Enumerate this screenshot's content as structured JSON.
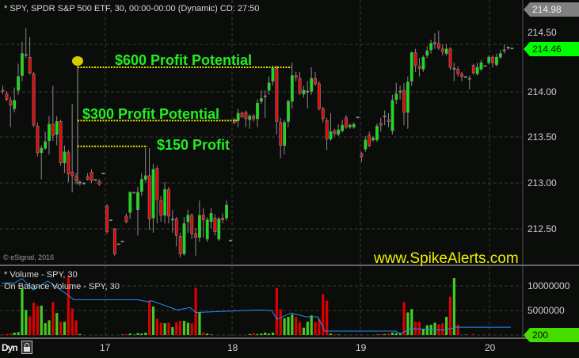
{
  "header": {
    "title": "* SPY, SPDR S&P 500 ETF, 30, 00:00-00:00 (Dynamic) CD: 27:50"
  },
  "annotations": {
    "a600": "$600 Profit Potential",
    "a300": "$300 Profit Potential",
    "a150": "$150 Profit"
  },
  "watermark": "www.SpikeAlerts.com",
  "copyright": "© eSignal, 2016",
  "volume_panel": {
    "legend1": "* Volume - SPY, 30",
    "legend2": "On Balance Volume - SPY, 30",
    "labels": [
      "10000000",
      "5000000"
    ],
    "current": "200"
  },
  "price_axis": {
    "high_tag": "214.98",
    "last_tag": "214.46",
    "labels": [
      "214.50",
      "214.00",
      "213.50",
      "213.00",
      "212.50"
    ]
  },
  "x_axis": {
    "labels": [
      "17",
      "18",
      "19",
      "20"
    ]
  },
  "footer": {
    "dyn": "Dyn"
  },
  "colors": {
    "up": "#00ee00",
    "down": "#ee0000",
    "annotation": "#22ee22",
    "dotted": "#e6e600",
    "watermark": "#f0f000",
    "obv": "#1e90ff",
    "last_tag": "#00ff00",
    "vol_up": "#44cc22",
    "vol_down": "#dd0000"
  },
  "chart_data": {
    "type": "candlestick",
    "title": "* SPY, SPDR S&P 500 ETF, 30, 00:00-00:00 (Dynamic) CD: 27:50",
    "ylim": [
      212.18,
      214.98
    ],
    "grid": true,
    "x_tick_labels": [
      "17",
      "18",
      "19",
      "20"
    ],
    "y_tick_labels": [
      "214.50",
      "214.00",
      "213.50",
      "213.00",
      "212.50"
    ],
    "ohlc": [
      [
        214.0,
        214.05,
        213.96,
        213.99
      ],
      [
        213.96,
        213.99,
        213.88,
        213.9
      ],
      [
        213.89,
        213.93,
        213.6,
        213.84
      ],
      [
        213.8,
        214.03,
        213.76,
        213.89
      ],
      [
        214.0,
        214.29,
        213.95,
        214.15
      ],
      [
        214.16,
        214.53,
        214.1,
        214.4
      ],
      [
        214.39,
        214.68,
        214.35,
        214.39
      ],
      [
        214.36,
        214.58,
        214.17,
        214.19
      ],
      [
        214.18,
        214.2,
        213.6,
        213.62
      ],
      [
        213.61,
        213.65,
        213.28,
        213.32
      ],
      [
        213.32,
        213.4,
        213.03,
        213.37
      ],
      [
        213.37,
        213.55,
        213.35,
        213.44
      ],
      [
        213.45,
        213.72,
        213.3,
        213.63
      ],
      [
        213.63,
        214.05,
        213.45,
        213.51
      ],
      [
        213.52,
        213.72,
        213.4,
        213.66
      ],
      [
        213.66,
        213.68,
        213.18,
        213.21
      ],
      [
        213.21,
        213.4,
        213.1,
        213.33
      ],
      [
        213.32,
        213.35,
        213.0,
        213.09
      ],
      [
        213.11,
        213.85,
        212.89,
        213.07
      ],
      [
        213.06,
        213.1,
        212.98,
        213.02
      ],
      [
        213.0,
        213.02,
        212.96,
        213.0
      ],
      [
        212.99,
        213.0,
        212.98,
        212.99
      ],
      [
        213.06,
        213.1,
        213.02,
        213.03
      ],
      [
        213.11,
        213.14,
        212.99,
        213.02
      ],
      [
        213.03,
        213.03,
        213.03,
        213.03
      ],
      [
        213.01,
        213.03,
        212.96,
        212.98
      ],
      [
        213.1,
        213.1,
        213.1,
        213.1
      ],
      [
        212.74,
        212.76,
        212.44,
        212.46
      ],
      [
        212.59,
        212.59,
        212.59,
        212.59
      ],
      [
        212.49,
        212.5,
        212.2,
        212.22
      ],
      [
        212.33,
        212.33,
        212.33,
        212.33
      ],
      [
        212.36,
        212.36,
        212.36,
        212.36
      ],
      [
        212.63,
        212.66,
        212.55,
        212.57
      ],
      [
        212.67,
        212.9,
        212.6,
        212.89
      ],
      [
        212.89,
        212.89,
        212.89,
        212.89
      ],
      [
        212.7,
        212.95,
        212.42,
        212.89
      ],
      [
        212.9,
        213.1,
        212.85,
        213.03
      ],
      [
        213.03,
        213.37,
        213.0,
        213.07
      ],
      [
        213.07,
        213.37,
        212.48,
        212.6
      ],
      [
        212.61,
        213.2,
        212.45,
        213.14
      ],
      [
        213.15,
        213.18,
        212.55,
        212.81
      ],
      [
        212.8,
        212.85,
        212.57,
        212.64
      ],
      [
        212.64,
        213.0,
        212.55,
        212.92
      ],
      [
        212.92,
        212.95,
        212.55,
        212.63
      ],
      [
        212.6,
        212.7,
        212.45,
        212.6
      ],
      [
        212.6,
        212.62,
        212.3,
        212.42
      ],
      [
        212.41,
        212.45,
        212.18,
        212.22
      ],
      [
        212.22,
        212.62,
        212.2,
        212.55
      ],
      [
        212.57,
        212.7,
        212.45,
        212.64
      ],
      [
        212.64,
        212.66,
        212.38,
        212.44
      ],
      [
        212.44,
        212.5,
        212.2,
        212.4
      ],
      [
        212.4,
        212.8,
        212.35,
        212.64
      ],
      [
        212.64,
        212.72,
        212.4,
        212.59
      ],
      [
        212.38,
        212.62,
        212.35,
        212.59
      ],
      [
        212.57,
        212.72,
        212.5,
        212.66
      ],
      [
        212.61,
        212.65,
        212.42,
        212.46
      ],
      [
        212.38,
        212.62,
        212.36,
        212.6
      ],
      [
        212.61,
        212.66,
        212.55,
        212.59
      ],
      [
        212.61,
        212.8,
        212.58,
        212.75
      ],
      [
        212.37,
        212.37,
        212.37,
        212.37
      ],
      [
        213.68,
        213.7,
        213.63,
        213.65
      ],
      [
        213.67,
        213.8,
        213.6,
        213.75
      ],
      [
        213.75,
        213.77,
        213.7,
        213.71
      ],
      [
        213.76,
        213.78,
        213.6,
        213.69
      ],
      [
        213.68,
        213.74,
        213.58,
        213.72
      ],
      [
        213.72,
        213.74,
        213.66,
        213.69
      ],
      [
        213.69,
        213.9,
        213.6,
        213.86
      ],
      [
        213.88,
        214.0,
        213.85,
        213.91
      ],
      [
        213.94,
        214.0,
        213.7,
        213.94
      ],
      [
        214.0,
        214.15,
        213.95,
        214.08
      ],
      [
        214.1,
        214.27,
        214.05,
        214.24
      ],
      [
        214.24,
        214.27,
        213.52,
        213.66
      ],
      [
        213.65,
        213.7,
        213.26,
        213.4
      ],
      [
        213.4,
        213.68,
        213.3,
        213.65
      ],
      [
        213.66,
        213.9,
        213.6,
        213.88
      ],
      [
        213.88,
        214.3,
        213.8,
        214.16
      ],
      [
        214.16,
        214.2,
        214.1,
        214.14
      ],
      [
        214.13,
        214.2,
        213.95,
        213.97
      ],
      [
        213.96,
        214.05,
        213.92,
        214.0
      ],
      [
        213.99,
        214.1,
        213.8,
        213.99
      ],
      [
        213.99,
        214.25,
        213.95,
        214.13
      ],
      [
        214.13,
        214.2,
        214.05,
        214.07
      ],
      [
        214.07,
        214.1,
        213.78,
        213.8
      ],
      [
        213.8,
        213.82,
        213.65,
        213.69
      ],
      [
        213.67,
        213.7,
        213.35,
        213.47
      ],
      [
        213.47,
        213.75,
        213.45,
        213.55
      ],
      [
        213.56,
        213.58,
        213.5,
        213.53
      ],
      [
        213.52,
        213.63,
        213.5,
        213.57
      ],
      [
        213.56,
        213.68,
        213.54,
        213.62
      ],
      [
        213.7,
        213.73,
        213.58,
        213.6
      ],
      [
        213.6,
        213.64,
        213.58,
        213.62
      ],
      [
        213.6,
        213.65,
        213.58,
        213.63
      ],
      [
        213.71,
        213.71,
        213.71,
        213.71
      ],
      [
        213.31,
        213.33,
        213.22,
        213.28
      ],
      [
        213.36,
        213.5,
        213.33,
        213.46
      ],
      [
        213.51,
        213.55,
        213.38,
        213.4
      ],
      [
        213.46,
        213.5,
        213.44,
        213.48
      ],
      [
        213.46,
        213.64,
        213.44,
        213.61
      ],
      [
        213.64,
        213.7,
        213.55,
        213.62
      ],
      [
        213.72,
        213.78,
        213.62,
        213.72
      ],
      [
        213.68,
        213.75,
        213.6,
        213.66
      ],
      [
        213.56,
        213.95,
        213.52,
        213.89
      ],
      [
        213.9,
        214.08,
        213.85,
        213.96
      ],
      [
        213.99,
        214.05,
        213.9,
        213.99
      ],
      [
        214.0,
        214.08,
        213.62,
        213.76
      ],
      [
        213.76,
        214.15,
        213.58,
        214.09
      ],
      [
        214.1,
        214.42,
        214.05,
        214.41
      ],
      [
        214.41,
        214.45,
        214.2,
        214.27
      ],
      [
        214.26,
        214.35,
        214.15,
        214.24
      ],
      [
        214.23,
        214.38,
        214.2,
        214.36
      ],
      [
        214.38,
        214.48,
        214.35,
        214.43
      ],
      [
        214.44,
        214.55,
        214.4,
        214.51
      ],
      [
        214.52,
        214.62,
        214.45,
        214.52
      ],
      [
        214.51,
        214.65,
        214.44,
        214.46
      ],
      [
        214.45,
        214.5,
        214.38,
        214.42
      ],
      [
        214.4,
        214.5,
        214.38,
        214.45
      ],
      [
        214.45,
        214.47,
        214.22,
        214.25
      ],
      [
        214.24,
        214.3,
        214.1,
        214.24
      ],
      [
        214.23,
        214.26,
        214.15,
        214.18
      ],
      [
        214.18,
        214.2,
        214.1,
        214.15
      ],
      [
        214.15,
        214.15,
        214.15,
        214.15
      ],
      [
        214.13,
        214.16,
        214.01,
        214.13
      ],
      [
        214.27,
        214.29,
        214.17,
        214.19
      ],
      [
        214.18,
        214.3,
        214.16,
        214.25
      ],
      [
        214.23,
        214.33,
        214.21,
        214.3
      ],
      [
        214.27,
        214.27,
        214.27,
        214.27
      ],
      [
        214.3,
        214.38,
        214.28,
        214.36
      ],
      [
        214.36,
        214.38,
        214.25,
        214.3
      ],
      [
        214.28,
        214.4,
        214.26,
        214.36
      ],
      [
        214.36,
        214.44,
        214.34,
        214.4
      ],
      [
        214.44,
        214.5,
        214.4,
        214.44
      ],
      [
        214.46,
        214.48,
        214.44,
        214.47
      ],
      [
        214.46,
        214.46,
        214.46,
        214.46
      ]
    ],
    "volume_millions": [
      0.1,
      0.2,
      0.3,
      0.5,
      0.6,
      9.5,
      5.1,
      3.8,
      6.6,
      5.9,
      6.0,
      2.4,
      3.0,
      6.7,
      4.5,
      2.7,
      2.7,
      12.0,
      5.4,
      3.0,
      0.2,
      0,
      0,
      0,
      0,
      0,
      0,
      0,
      0,
      0,
      0,
      0.1,
      0.2,
      0.3,
      0.1,
      0.4,
      0.3,
      0.5,
      7.0,
      5.8,
      3.3,
      2.5,
      2.4,
      2.5,
      1.6,
      2.6,
      2.9,
      2.9,
      2.5,
      2.4,
      9.6,
      4.6,
      0.5,
      0.3,
      0.1,
      0,
      0,
      0,
      0,
      0,
      0,
      0,
      0,
      0.1,
      0.2,
      0.4,
      0.2,
      0.3,
      0.5,
      0.3,
      0.5,
      9.6,
      5.2,
      3.4,
      3.7,
      4.2,
      3.7,
      2.6,
      1.5,
      2.7,
      4.0,
      2.6,
      3.3,
      8.3,
      7.0,
      0.3,
      0.1,
      0.1,
      0,
      0,
      0,
      0,
      0,
      0,
      0,
      0,
      0,
      0.1,
      0.2,
      0.2,
      0.3,
      0.5,
      0.4,
      0.3,
      6.7,
      4.6,
      5.3,
      2.7,
      2.7,
      1.3,
      2.0,
      2.1,
      2.5,
      2.2,
      2.4,
      3.7,
      7.8,
      11.6,
      2.1,
      0,
      0.1,
      0,
      0.2,
      0,
      0,
      0,
      0,
      0,
      0,
      0,
      0,
      0,
      0
    ],
    "obv_millions": [
      [
        0,
        10.6
      ],
      [
        3.4,
        10.6
      ],
      [
        5.3,
        11.5
      ],
      [
        8.2,
        9.2
      ],
      [
        12,
        11
      ],
      [
        16.8,
        8.4
      ],
      [
        18.7,
        7.2
      ],
      [
        35,
        7.2
      ],
      [
        37.9,
        6.8
      ],
      [
        38.8,
        7
      ],
      [
        41.7,
        6.2
      ],
      [
        45.5,
        5.1
      ],
      [
        48.9,
        5.6
      ],
      [
        50.3,
        4.6
      ],
      [
        66.6,
        5.1
      ],
      [
        70,
        5
      ],
      [
        71.4,
        3.2
      ],
      [
        75,
        4.5
      ],
      [
        79,
        3.7
      ],
      [
        82,
        3.7
      ],
      [
        83.8,
        0.8
      ],
      [
        102,
        0.8
      ],
      [
        103.5,
        0.3
      ],
      [
        106,
        1.3
      ],
      [
        114.5,
        1
      ],
      [
        118,
        1.6
      ],
      [
        132,
        1.6
      ]
    ],
    "annotation_levels": {
      "entry": 213.0,
      "a600": 214.25,
      "a300": 213.67,
      "a150": 213.39
    }
  }
}
